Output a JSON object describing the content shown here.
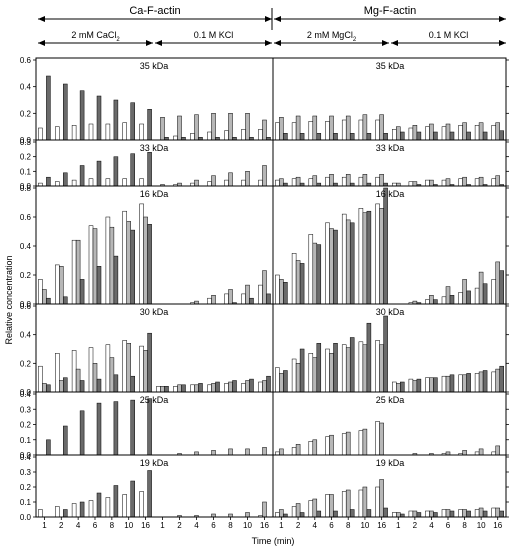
{
  "chart_data": {
    "type": "bar",
    "top_headers": {
      "left": "Ca-F-actin",
      "right": "Mg-F-actin",
      "sub": [
        {
          "text": "2 mM CaCl",
          "sub": "2"
        },
        {
          "text": "0.1 M KCl",
          "sub": ""
        },
        {
          "text": "2 mM MgCl",
          "sub": "2"
        },
        {
          "text": "0.1 M KCl",
          "sub": ""
        }
      ]
    },
    "xlabel": "Time (min)",
    "ylabel": "Relative concentration",
    "x_tick_labels": [
      "1",
      "2",
      "4",
      "6",
      "8",
      "10",
      "16"
    ],
    "bar_fills": {
      "white": "#ffffff",
      "light": "#b7b7b7",
      "dark": "#6a6a6a"
    },
    "panels": [
      {
        "title": "35 kDa",
        "ylim": [
          0,
          0.6
        ],
        "yticks": [
          "0.0",
          "0.2",
          "0.4",
          "0.6"
        ],
        "series": {
          "Ca-F-actin": {
            "2 mM CaCl2": {
              "white": [
                0.09,
                0.1,
                0.11,
                0.12,
                0.12,
                0.13,
                0.12
              ],
              "light": [
                0.0,
                0.0,
                0.0,
                0.0,
                0.0,
                0.0,
                0.0
              ],
              "dark": [
                0.48,
                0.42,
                0.37,
                0.33,
                0.3,
                0.28,
                0.23
              ]
            },
            "0.1 M KCl": {
              "white": [
                0.0,
                0.03,
                0.05,
                0.06,
                0.07,
                0.08,
                0.08
              ],
              "light": [
                0.17,
                0.18,
                0.19,
                0.2,
                0.2,
                0.2,
                0.15
              ],
              "dark": [
                0.02,
                0.02,
                0.02,
                0.02,
                0.02,
                0.02,
                0.02
              ]
            }
          },
          "Mg-F-actin": {
            "2 mM MgCl2": {
              "white": [
                0.13,
                0.13,
                0.14,
                0.14,
                0.15,
                0.15,
                0.15
              ],
              "light": [
                0.17,
                0.18,
                0.18,
                0.18,
                0.18,
                0.19,
                0.19
              ],
              "dark": [
                0.05,
                0.05,
                0.05,
                0.05,
                0.05,
                0.05,
                0.05
              ]
            },
            "0.1 M KCl": {
              "white": [
                0.08,
                0.09,
                0.1,
                0.1,
                0.11,
                0.11,
                0.11
              ],
              "light": [
                0.1,
                0.11,
                0.12,
                0.12,
                0.13,
                0.13,
                0.13
              ],
              "dark": [
                0.06,
                0.06,
                0.06,
                0.06,
                0.06,
                0.06,
                0.07
              ]
            }
          }
        }
      },
      {
        "title": "33 kDa",
        "ylim": [
          0,
          0.3
        ],
        "yticks": [
          "0.0",
          "0.1",
          "0.2",
          "0.3"
        ],
        "series": {
          "Ca-F-actin": {
            "2 mM CaCl2": {
              "white": [
                0.02,
                0.03,
                0.04,
                0.05,
                0.05,
                0.05,
                0.05
              ],
              "light": [
                0.0,
                0.0,
                0.0,
                0.0,
                0.0,
                0.0,
                0.0
              ],
              "dark": [
                0.06,
                0.09,
                0.14,
                0.17,
                0.2,
                0.22,
                0.23
              ]
            },
            "0.1 M KCl": {
              "white": [
                0.0,
                0.01,
                0.02,
                0.03,
                0.04,
                0.04,
                0.04
              ],
              "light": [
                0.01,
                0.02,
                0.04,
                0.07,
                0.09,
                0.1,
                0.14
              ],
              "dark": [
                0.0,
                0.0,
                0.0,
                0.0,
                0.0,
                0.0,
                0.0
              ]
            }
          },
          "Mg-F-actin": {
            "2 mM MgCl2": {
              "white": [
                0.04,
                0.05,
                0.05,
                0.06,
                0.06,
                0.06,
                0.06
              ],
              "light": [
                0.05,
                0.06,
                0.07,
                0.08,
                0.08,
                0.08,
                0.08
              ],
              "dark": [
                0.02,
                0.02,
                0.02,
                0.02,
                0.02,
                0.02,
                0.02
              ]
            },
            "0.1 M KCl": {
              "white": [
                0.02,
                0.03,
                0.04,
                0.04,
                0.05,
                0.05,
                0.05
              ],
              "light": [
                0.02,
                0.03,
                0.04,
                0.05,
                0.06,
                0.06,
                0.07
              ],
              "dark": [
                0.0,
                0.01,
                0.01,
                0.01,
                0.01,
                0.01,
                0.01
              ]
            }
          }
        }
      },
      {
        "title": "16 kDa",
        "ylim": [
          0,
          0.8
        ],
        "yticks": [
          "0.0",
          "0.2",
          "0.4",
          "0.6",
          "0.8"
        ],
        "series": {
          "Ca-F-actin": {
            "2 mM CaCl2": {
              "white": [
                0.17,
                0.27,
                0.44,
                0.54,
                0.6,
                0.64,
                0.69
              ],
              "light": [
                0.1,
                0.26,
                0.44,
                0.52,
                0.53,
                0.57,
                0.6
              ],
              "dark": [
                0.04,
                0.05,
                0.17,
                0.26,
                0.33,
                0.51,
                0.55
              ]
            },
            "0.1 M KCl": {
              "white": [
                0.0,
                0.0,
                0.01,
                0.04,
                0.07,
                0.07,
                0.13
              ],
              "light": [
                0.0,
                0.0,
                0.02,
                0.06,
                0.1,
                0.13,
                0.23
              ],
              "dark": [
                0.0,
                0.0,
                0.0,
                0.0,
                0.01,
                0.04,
                0.07
              ]
            }
          },
          "Mg-F-actin": {
            "2 mM MgCl2": {
              "white": [
                0.2,
                0.35,
                0.48,
                0.56,
                0.62,
                0.66,
                0.69
              ],
              "light": [
                0.17,
                0.3,
                0.42,
                0.52,
                0.58,
                0.63,
                0.66
              ],
              "dark": [
                0.15,
                0.28,
                0.41,
                0.51,
                0.56,
                0.64,
                0.8
              ]
            },
            "0.1 M KCl": {
              "white": [
                0.0,
                0.01,
                0.03,
                0.05,
                0.08,
                0.11,
                0.17
              ],
              "light": [
                0.0,
                0.02,
                0.06,
                0.12,
                0.17,
                0.22,
                0.29
              ],
              "dark": [
                0.0,
                0.01,
                0.03,
                0.06,
                0.09,
                0.14,
                0.23
              ]
            }
          }
        }
      },
      {
        "title": "30 kDa",
        "ylim": [
          0,
          0.6
        ],
        "yticks": [
          "0.0",
          "0.2",
          "0.4",
          "0.6"
        ],
        "series": {
          "Ca-F-actin": {
            "2 mM CaCl2": {
              "white": [
                0.18,
                0.27,
                0.29,
                0.31,
                0.33,
                0.36,
                0.32
              ],
              "light": [
                0.06,
                0.08,
                0.16,
                0.2,
                0.24,
                0.34,
                0.29
              ],
              "dark": [
                0.05,
                0.1,
                0.08,
                0.09,
                0.12,
                0.11,
                0.41
              ]
            },
            "0.1 M KCl": {
              "white": [
                0.04,
                0.04,
                0.05,
                0.05,
                0.06,
                0.06,
                0.07
              ],
              "light": [
                0.04,
                0.05,
                0.05,
                0.06,
                0.07,
                0.08,
                0.08
              ],
              "dark": [
                0.04,
                0.05,
                0.06,
                0.07,
                0.08,
                0.09,
                0.11
              ]
            }
          },
          "Mg-F-actin": {
            "2 mM MgCl2": {
              "white": [
                0.17,
                0.23,
                0.27,
                0.3,
                0.33,
                0.35,
                0.36
              ],
              "light": [
                0.13,
                0.2,
                0.24,
                0.27,
                0.31,
                0.33,
                0.33
              ],
              "dark": [
                0.15,
                0.3,
                0.34,
                0.34,
                0.38,
                0.48,
                0.53
              ]
            },
            "0.1 M KCl": {
              "white": [
                0.07,
                0.09,
                0.1,
                0.11,
                0.12,
                0.13,
                0.14
              ],
              "light": [
                0.06,
                0.08,
                0.1,
                0.11,
                0.12,
                0.14,
                0.16
              ],
              "dark": [
                0.07,
                0.09,
                0.1,
                0.12,
                0.13,
                0.15,
                0.18
              ]
            }
          }
        }
      },
      {
        "title": "25 kDa",
        "ylim": [
          0,
          0.4
        ],
        "yticks": [
          "0.0",
          "0.1",
          "0.2",
          "0.3",
          "0.4"
        ],
        "series": {
          "Ca-F-actin": {
            "2 mM CaCl2": {
              "white": [
                0.0,
                0.0,
                0.0,
                0.0,
                0.0,
                0.0,
                0.0
              ],
              "light": [
                0.0,
                0.0,
                0.0,
                0.0,
                0.0,
                0.0,
                0.0
              ],
              "dark": [
                0.1,
                0.19,
                0.29,
                0.34,
                0.35,
                0.36,
                0.37
              ]
            },
            "0.1 M KCl": {
              "white": [
                0.0,
                0.0,
                0.0,
                0.0,
                0.0,
                0.0,
                0.0
              ],
              "light": [
                0.0,
                0.01,
                0.02,
                0.03,
                0.04,
                0.04,
                0.05
              ],
              "dark": [
                0.0,
                0.0,
                0.0,
                0.0,
                0.0,
                0.0,
                0.0
              ]
            }
          },
          "Mg-F-actin": {
            "2 mM MgCl2": {
              "white": [
                0.02,
                0.05,
                0.09,
                0.12,
                0.14,
                0.16,
                0.22
              ],
              "light": [
                0.04,
                0.07,
                0.1,
                0.13,
                0.15,
                0.17,
                0.21
              ],
              "dark": [
                0.0,
                0.0,
                0.0,
                0.0,
                0.0,
                0.0,
                0.0
              ]
            },
            "0.1 M KCl": {
              "white": [
                0.0,
                0.0,
                0.0,
                0.01,
                0.01,
                0.02,
                0.02
              ],
              "light": [
                0.0,
                0.01,
                0.01,
                0.02,
                0.03,
                0.04,
                0.06
              ],
              "dark": [
                0.0,
                0.0,
                0.0,
                0.0,
                0.0,
                0.0,
                0.0
              ]
            }
          }
        }
      },
      {
        "title": "19 kDa",
        "ylim": [
          0,
          0.4
        ],
        "yticks": [
          "0.0",
          "0.1",
          "0.2",
          "0.3",
          "0.4"
        ],
        "series": {
          "Ca-F-actin": {
            "2 mM CaCl2": {
              "white": [
                0.05,
                0.07,
                0.09,
                0.11,
                0.13,
                0.15,
                0.17
              ],
              "light": [
                0.0,
                0.0,
                0.0,
                0.0,
                0.0,
                0.0,
                0.0
              ],
              "dark": [
                0.0,
                0.05,
                0.1,
                0.16,
                0.21,
                0.24,
                0.31
              ]
            },
            "0.1 M KCl": {
              "white": [
                0.0,
                0.0,
                0.0,
                0.0,
                0.0,
                0.0,
                0.01
              ],
              "light": [
                0.0,
                0.01,
                0.01,
                0.02,
                0.02,
                0.03,
                0.1
              ],
              "dark": [
                0.0,
                0.0,
                0.0,
                0.0,
                0.0,
                0.0,
                0.0
              ]
            }
          },
          "Mg-F-actin": {
            "2 mM MgCl2": {
              "white": [
                0.03,
                0.07,
                0.11,
                0.15,
                0.17,
                0.18,
                0.2
              ],
              "light": [
                0.05,
                0.09,
                0.12,
                0.15,
                0.18,
                0.2,
                0.25
              ],
              "dark": [
                0.02,
                0.03,
                0.04,
                0.04,
                0.05,
                0.05,
                0.06
              ]
            },
            "0.1 M KCl": {
              "white": [
                0.03,
                0.04,
                0.04,
                0.05,
                0.05,
                0.05,
                0.06
              ],
              "light": [
                0.03,
                0.04,
                0.04,
                0.05,
                0.05,
                0.06,
                0.06
              ],
              "dark": [
                0.02,
                0.03,
                0.03,
                0.04,
                0.04,
                0.04,
                0.04
              ]
            }
          }
        }
      }
    ]
  }
}
